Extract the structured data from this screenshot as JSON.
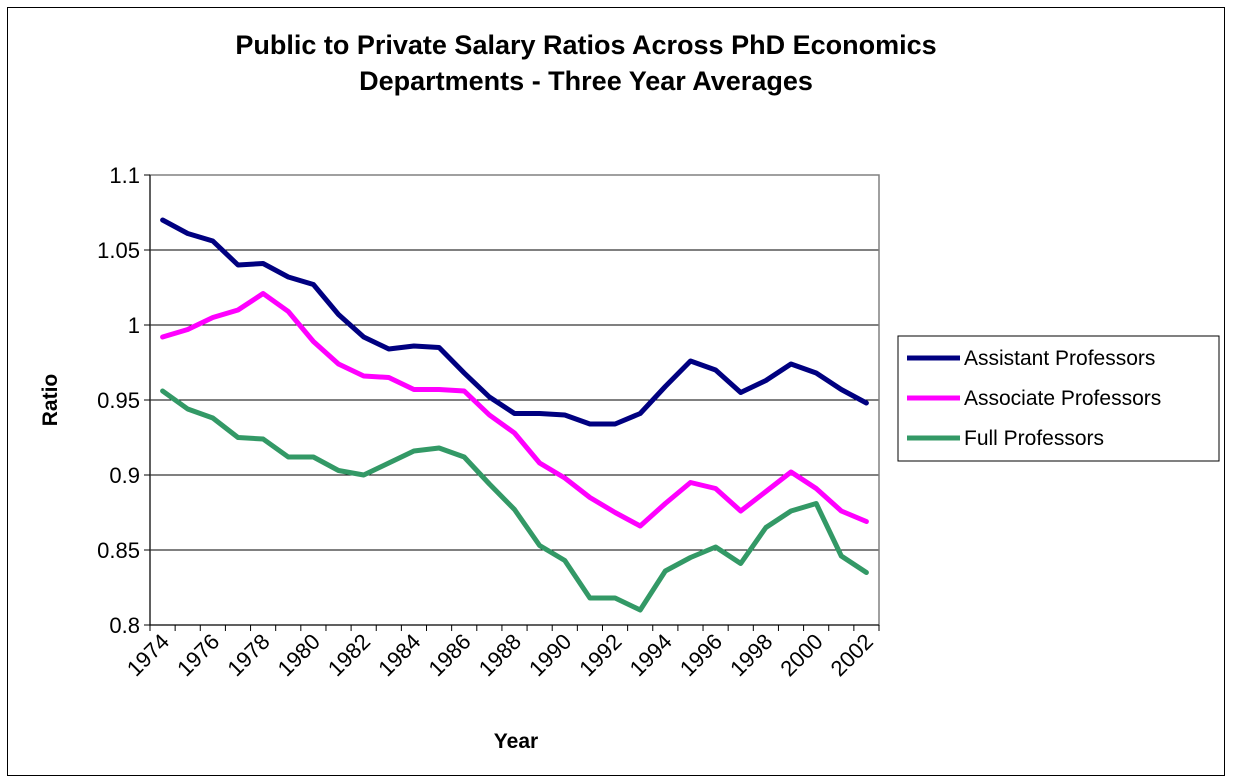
{
  "chart_data": {
    "type": "line",
    "title_lines": [
      "Public to Private Salary Ratios Across PhD Economics",
      "Departments - Three Year Averages"
    ],
    "xlabel": "Year",
    "ylabel": "Ratio",
    "ylim": [
      0.8,
      1.1
    ],
    "yticks": [
      0.8,
      0.85,
      0.9,
      0.95,
      1,
      1.05,
      1.1
    ],
    "ytick_labels": [
      "0.8",
      "0.85",
      "0.9",
      "0.95",
      "1",
      "1.05",
      "1.1"
    ],
    "x": [
      1974,
      1975,
      1976,
      1977,
      1978,
      1979,
      1980,
      1981,
      1982,
      1983,
      1984,
      1985,
      1986,
      1987,
      1988,
      1989,
      1990,
      1991,
      1992,
      1993,
      1994,
      1995,
      1996,
      1997,
      1998,
      1999,
      2000,
      2001,
      2002
    ],
    "xtick_labels": [
      "1974",
      "1976",
      "1978",
      "1980",
      "1982",
      "1984",
      "1986",
      "1988",
      "1990",
      "1992",
      "1994",
      "1996",
      "1998",
      "2000",
      "2002"
    ],
    "grid": "horizontal",
    "legend_position": "right",
    "series": [
      {
        "name": "Assistant Professors",
        "color": "#000080",
        "values": [
          1.07,
          1.061,
          1.056,
          1.04,
          1.041,
          1.032,
          1.027,
          1.007,
          0.992,
          0.984,
          0.986,
          0.985,
          0.968,
          0.952,
          0.941,
          0.941,
          0.94,
          0.934,
          0.934,
          0.941,
          0.959,
          0.976,
          0.97,
          0.955,
          0.963,
          0.974,
          0.968,
          0.957,
          0.948
        ]
      },
      {
        "name": "Associate Professors",
        "color": "#FF00FF",
        "values": [
          0.992,
          0.997,
          1.005,
          1.01,
          1.021,
          1.009,
          0.989,
          0.974,
          0.966,
          0.965,
          0.957,
          0.957,
          0.956,
          0.94,
          0.928,
          0.908,
          0.898,
          0.885,
          0.875,
          0.866,
          0.881,
          0.895,
          0.891,
          0.876,
          0.889,
          0.902,
          0.891,
          0.876,
          0.869
        ]
      },
      {
        "name": "Full Professors",
        "color": "#339966",
        "values": [
          0.956,
          0.944,
          0.938,
          0.925,
          0.924,
          0.912,
          0.912,
          0.903,
          0.9,
          0.908,
          0.916,
          0.918,
          0.912,
          0.894,
          0.877,
          0.853,
          0.843,
          0.818,
          0.818,
          0.81,
          0.836,
          0.845,
          0.852,
          0.841,
          0.865,
          0.876,
          0.881,
          0.846,
          0.835
        ]
      }
    ]
  }
}
